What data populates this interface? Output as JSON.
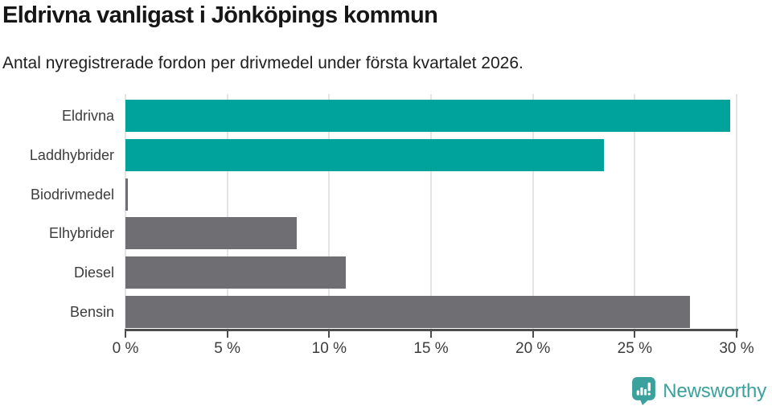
{
  "header": {
    "title": "Eldrivna vanligast i Jönköpings kommun",
    "subtitle": "Antal nyregistrerade fordon per drivmedel under första kvartalet 2026."
  },
  "chart_data": {
    "type": "bar",
    "orientation": "horizontal",
    "title": "Eldrivna vanligast i Jönköpings kommun",
    "subtitle": "Antal nyregistrerade fordon per drivmedel under första kvartalet 2026.",
    "categories": [
      "Eldrivna",
      "Laddhybrider",
      "Biodrivmedel",
      "Elhybrider",
      "Diesel",
      "Bensin"
    ],
    "values": [
      29.7,
      23.5,
      0.1,
      8.4,
      10.8,
      27.7
    ],
    "unit": "%",
    "xlim": [
      0,
      30
    ],
    "x_ticks": [
      0,
      5,
      10,
      15,
      20,
      25,
      30
    ],
    "x_tick_labels": [
      "0 %",
      "5 %",
      "10 %",
      "15 %",
      "20 %",
      "25 %",
      "30 %"
    ],
    "bar_colors": [
      "#00a39c",
      "#00a39c",
      "#6e6e73",
      "#6e6e73",
      "#6e6e73",
      "#6e6e73"
    ],
    "highlight_color": "#00a39c",
    "default_color": "#6e6e73",
    "grid": true,
    "legend": false
  },
  "footer": {
    "brand": "Newsworthy",
    "logo_icon": "newsworthy-logo-icon",
    "logo_color": "#3aa19c"
  }
}
